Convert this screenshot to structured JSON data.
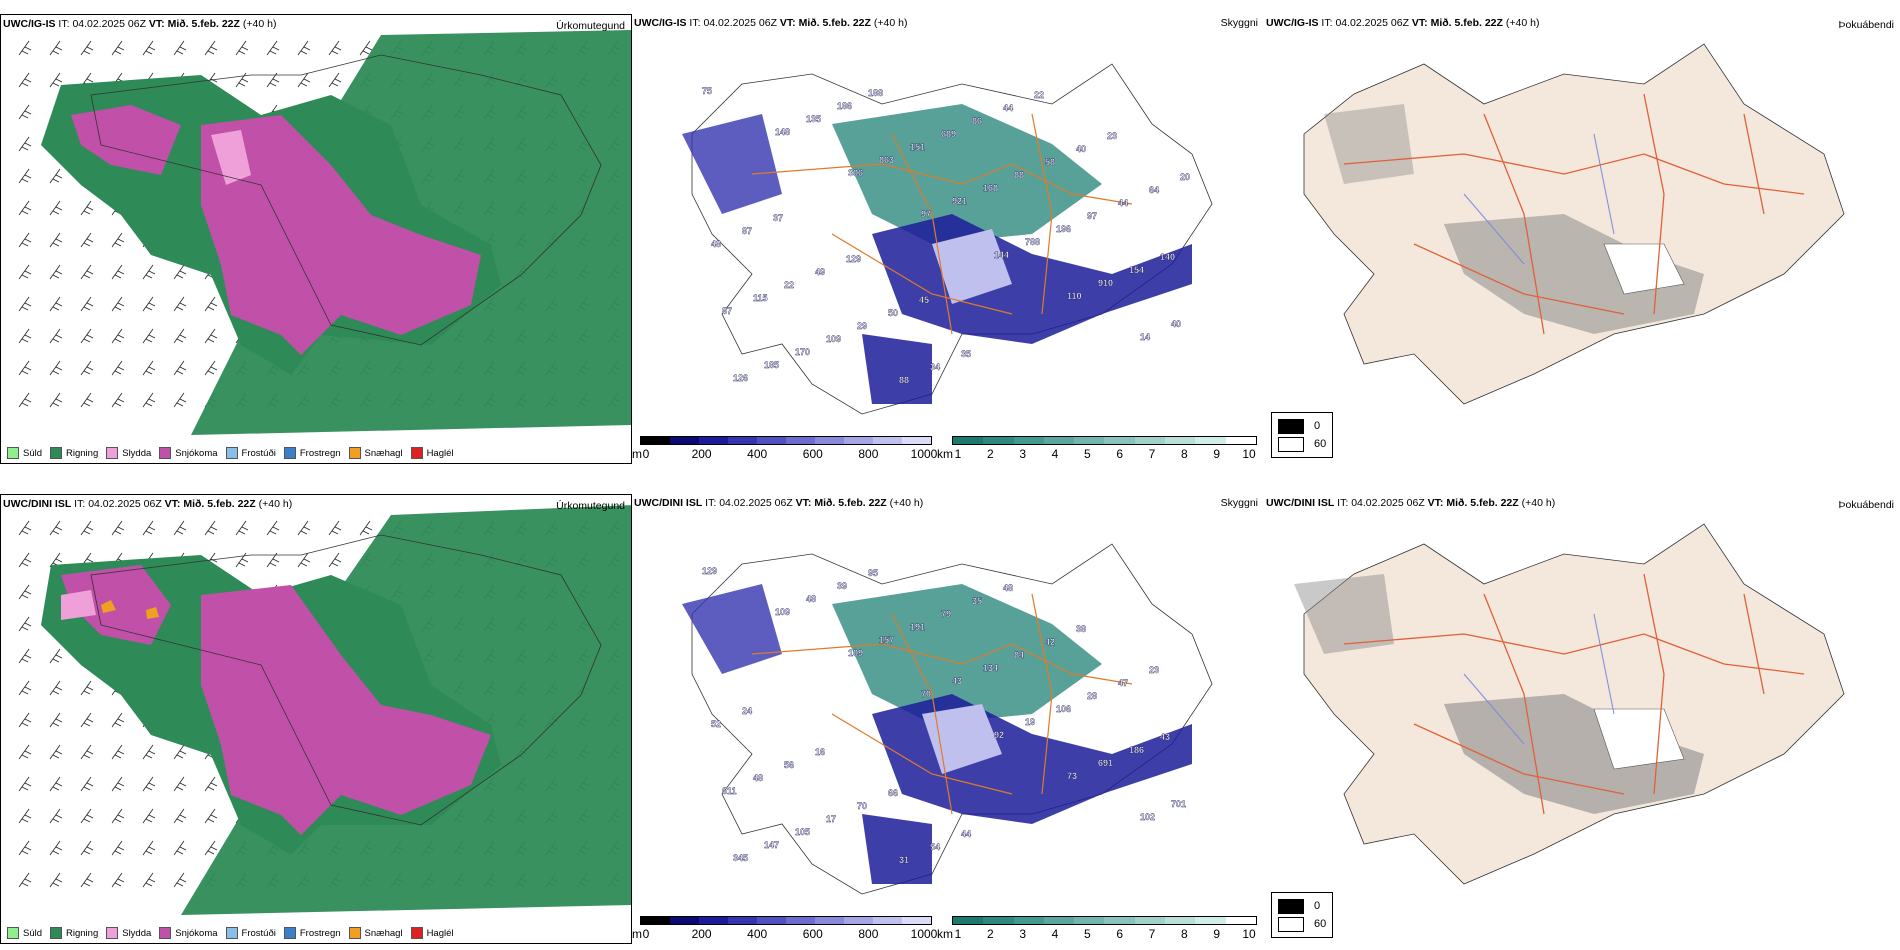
{
  "rows": [
    {
      "model": "UWC/IG-IS",
      "it_label": "IT:",
      "it_value": "04.02.2025 06Z",
      "vt_label": "VT:",
      "vt_value": "Mið. 5.feb. 22Z",
      "lead": "(+40 h)",
      "p1_title": "Úrkomutegund",
      "p2_title": "Skyggni",
      "p3_title": "Þokuábendi",
      "labels": [
        "75",
        "148",
        "306",
        "97",
        "144",
        "110",
        "14",
        "126",
        "135",
        "863",
        "921",
        "788",
        "910",
        "40",
        "185",
        "186",
        "151",
        "168",
        "196",
        "154",
        "87",
        "170",
        "188",
        "689",
        "88",
        "97",
        "140",
        "115",
        "109",
        "88",
        "86",
        "58",
        "44",
        "48",
        "22",
        "29",
        "34",
        "44",
        "40",
        "64",
        "87",
        "49",
        "50",
        "35",
        "22",
        "23",
        "20",
        "37",
        "129",
        "45"
      ]
    },
    {
      "model": "UWC/DINI ISL",
      "it_label": "IT:",
      "it_value": "04.02.2025 06Z",
      "vt_label": "VT:",
      "vt_value": "Mið. 5.feb. 22Z",
      "lead": "(+40 h)",
      "p1_title": "Úrkomutegund",
      "p2_title": "Skyggni",
      "p3_title": "Þokuábendi",
      "labels": [
        "129",
        "109",
        "109",
        "70",
        "92",
        "73",
        "102",
        "345",
        "48",
        "157",
        "43",
        "19",
        "691",
        "701",
        "147",
        "39",
        "191",
        "134",
        "106",
        "186",
        "611",
        "105",
        "95",
        "79",
        "84",
        "28",
        "43",
        "48",
        "17",
        "31",
        "35",
        "42",
        "47",
        "52",
        "56",
        "70",
        "54",
        "48",
        "38",
        "23",
        "24",
        "16",
        "66",
        "44"
      ]
    }
  ],
  "precip_legend": [
    {
      "label": "Súld",
      "color": "#90ee90"
    },
    {
      "label": "Rigning",
      "color": "#2e8b57"
    },
    {
      "label": "Slydda",
      "color": "#f0a0d8"
    },
    {
      "label": "Snjókoma",
      "color": "#c050a8"
    },
    {
      "label": "Frostúði",
      "color": "#87bde8"
    },
    {
      "label": "Frostregn",
      "color": "#3a7fc8"
    },
    {
      "label": "Snæhagl",
      "color": "#f0a020"
    },
    {
      "label": "Haglél",
      "color": "#e02020"
    }
  ],
  "height_bar": {
    "unit": "m",
    "ticks": [
      "0",
      "200",
      "400",
      "600",
      "800",
      "1000"
    ],
    "colors": [
      "#000000",
      "#0a0a70",
      "#1c1c9a",
      "#3535b0",
      "#5050c0",
      "#6c6cd0",
      "#8888dc",
      "#a4a4e6",
      "#c0c0ef",
      "#dcdcf8"
    ]
  },
  "vis_bar": {
    "unit": "km",
    "ticks": [
      "1",
      "2",
      "3",
      "4",
      "5",
      "6",
      "7",
      "8",
      "9",
      "10"
    ],
    "colors": [
      "#1a7a70",
      "#2d8a80",
      "#409a90",
      "#58a8a0",
      "#70b6ae",
      "#88c4bc",
      "#a0d2ca",
      "#b8e0d8",
      "#d0eee8",
      "#ffffff"
    ]
  },
  "sky_legend": [
    "0",
    "60"
  ],
  "colors": {
    "rain": "#2e8b57",
    "snow": "#c050a8",
    "sleet": "#f0a0d8",
    "roads": "#e07a2a",
    "terrain": "#f4e8dc"
  }
}
